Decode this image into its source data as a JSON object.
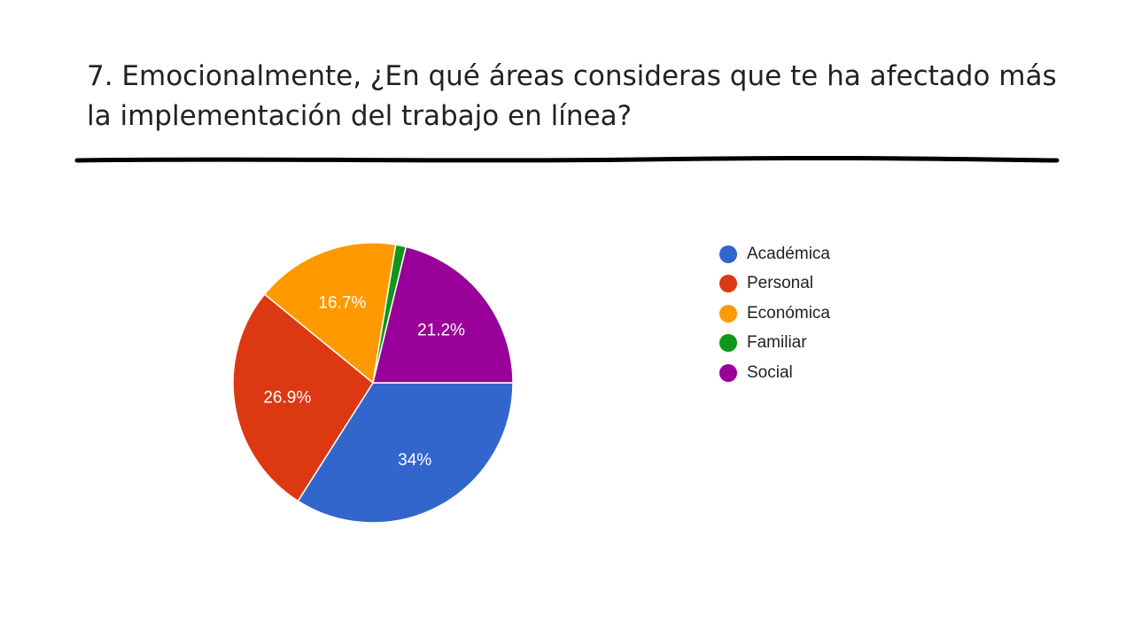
{
  "slide": {
    "title": "7. Emocionalmente, ¿En qué áreas consideras que te ha afectado más la implementación del trabajo en línea?"
  },
  "chart_data": {
    "type": "pie",
    "title": "",
    "categories": [
      "Académica",
      "Personal",
      "Económica",
      "Familiar",
      "Social"
    ],
    "values": [
      34.0,
      26.9,
      16.7,
      1.2,
      21.2
    ],
    "labels": [
      "34%",
      "26.9%",
      "16.7%",
      "",
      "21.2%"
    ],
    "colors": [
      "#3366cc",
      "#dc3912",
      "#ff9900",
      "#109618",
      "#990099"
    ],
    "start_angle_deg": 0,
    "direction": "clockwise",
    "legend_position": "right"
  }
}
